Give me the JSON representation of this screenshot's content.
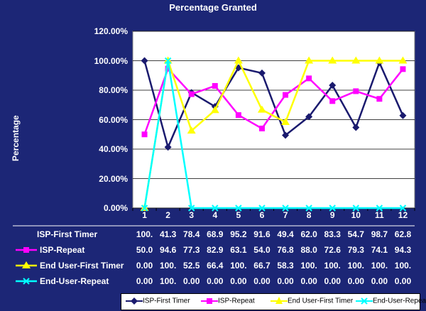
{
  "chart_data": {
    "type": "line",
    "title": "Percentage Granted",
    "ylabel": "Percentage",
    "xlabel": "",
    "ylim": [
      0,
      120
    ],
    "yticks": [
      "0.00%",
      "20.00%",
      "40.00%",
      "60.00%",
      "80.00%",
      "100.00%",
      "120.00%"
    ],
    "categories": [
      "1",
      "2",
      "3",
      "4",
      "5",
      "6",
      "7",
      "8",
      "9",
      "10",
      "11",
      "12"
    ],
    "series": [
      {
        "name": "ISP-First Timer",
        "color": "#1a1a6e",
        "marker": "diamond",
        "values": [
          100,
          41.3,
          78.4,
          68.9,
          95.2,
          91.6,
          49.4,
          62.0,
          83.3,
          54.7,
          98.7,
          62.8
        ],
        "labels": [
          "100.",
          "41.3",
          "78.4",
          "68.9",
          "95.2",
          "91.6",
          "49.4",
          "62.0",
          "83.3",
          "54.7",
          "98.7",
          "62.8"
        ]
      },
      {
        "name": "ISP-Repeat",
        "color": "#ff00ff",
        "marker": "square",
        "values": [
          50.0,
          94.6,
          77.3,
          82.9,
          63.1,
          54.0,
          76.8,
          88.0,
          72.6,
          79.3,
          74.1,
          94.3
        ],
        "labels": [
          "50.0",
          "94.6",
          "77.3",
          "82.9",
          "63.1",
          "54.0",
          "76.8",
          "88.0",
          "72.6",
          "79.3",
          "74.1",
          "94.3"
        ]
      },
      {
        "name": "End User-First Timer",
        "color": "#ffff00",
        "marker": "triangle",
        "values": [
          0,
          100,
          52.5,
          66.4,
          100,
          66.7,
          58.3,
          100,
          100,
          100,
          100,
          100
        ],
        "labels": [
          "0.00",
          "100.",
          "52.5",
          "66.4",
          "100.",
          "66.7",
          "58.3",
          "100.",
          "100.",
          "100.",
          "100.",
          "100."
        ]
      },
      {
        "name": "End-User-Repeat",
        "color": "#00ffff",
        "marker": "x",
        "values": [
          0,
          100,
          0,
          0,
          0,
          0,
          0,
          0,
          0,
          0,
          0,
          0
        ],
        "labels": [
          "0.00",
          "100.",
          "0.00",
          "0.00",
          "0.00",
          "0.00",
          "0.00",
          "0.00",
          "0.00",
          "0.00",
          "0.00",
          "0.00"
        ]
      }
    ],
    "table_row_labels": [
      "ISP-First Timer",
      "ISP-Repeat",
      "End User-First Timer",
      "End-User-Repeat"
    ],
    "legend": [
      "ISP-First Timer",
      "ISP-Repeat",
      "End User-First Timer",
      "End-User-Repeat"
    ]
  }
}
